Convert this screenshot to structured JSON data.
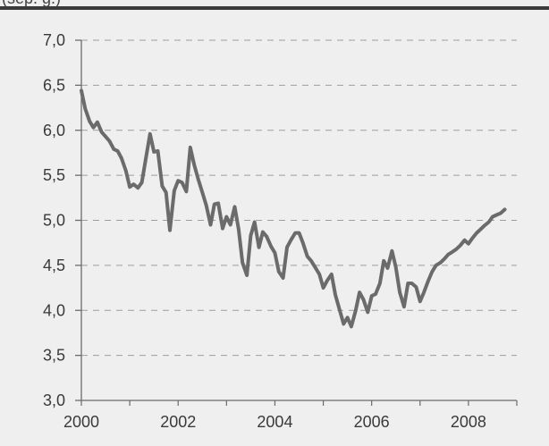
{
  "header": {
    "partial_subtitle": "(sep.         g.)"
  },
  "chart_data": {
    "type": "line",
    "title": "",
    "xlabel": "",
    "ylabel": "",
    "ylim": [
      3.0,
      7.0
    ],
    "xlim": [
      2000.0,
      2009.0
    ],
    "y_ticks": [
      "7,0",
      "6,5",
      "6,0",
      "5,5",
      "5,0",
      "4,5",
      "4,0",
      "3,5",
      "3,0"
    ],
    "x_ticks": [
      "2000",
      "2002",
      "2004",
      "2006",
      "2008"
    ],
    "grid": "horizontal dashed",
    "series": [
      {
        "values": [
          [
            2000.0,
            6.44
          ],
          [
            2000.08,
            6.24
          ],
          [
            2000.17,
            6.1
          ],
          [
            2000.25,
            6.03
          ],
          [
            2000.33,
            6.09
          ],
          [
            2000.42,
            5.98
          ],
          [
            2000.5,
            5.93
          ],
          [
            2000.58,
            5.88
          ],
          [
            2000.67,
            5.79
          ],
          [
            2000.75,
            5.77
          ],
          [
            2000.83,
            5.69
          ],
          [
            2000.92,
            5.55
          ],
          [
            2001.0,
            5.37
          ],
          [
            2001.08,
            5.4
          ],
          [
            2001.17,
            5.36
          ],
          [
            2001.25,
            5.42
          ],
          [
            2001.33,
            5.68
          ],
          [
            2001.42,
            5.96
          ],
          [
            2001.5,
            5.76
          ],
          [
            2001.58,
            5.77
          ],
          [
            2001.67,
            5.38
          ],
          [
            2001.75,
            5.31
          ],
          [
            2001.83,
            4.89
          ],
          [
            2001.92,
            5.33
          ],
          [
            2002.0,
            5.44
          ],
          [
            2002.08,
            5.42
          ],
          [
            2002.17,
            5.32
          ],
          [
            2002.25,
            5.81
          ],
          [
            2002.33,
            5.62
          ],
          [
            2002.42,
            5.45
          ],
          [
            2002.5,
            5.31
          ],
          [
            2002.58,
            5.17
          ],
          [
            2002.67,
            4.95
          ],
          [
            2002.75,
            5.18
          ],
          [
            2002.83,
            5.19
          ],
          [
            2002.92,
            4.91
          ],
          [
            2003.0,
            5.04
          ],
          [
            2003.08,
            4.95
          ],
          [
            2003.17,
            5.15
          ],
          [
            2003.25,
            4.9
          ],
          [
            2003.33,
            4.53
          ],
          [
            2003.42,
            4.39
          ],
          [
            2003.5,
            4.83
          ],
          [
            2003.58,
            4.98
          ],
          [
            2003.67,
            4.7
          ],
          [
            2003.75,
            4.87
          ],
          [
            2003.83,
            4.82
          ],
          [
            2003.92,
            4.71
          ],
          [
            2004.0,
            4.64
          ],
          [
            2004.08,
            4.43
          ],
          [
            2004.17,
            4.36
          ],
          [
            2004.25,
            4.7
          ],
          [
            2004.33,
            4.78
          ],
          [
            2004.42,
            4.86
          ],
          [
            2004.5,
            4.86
          ],
          [
            2004.58,
            4.75
          ],
          [
            2004.67,
            4.6
          ],
          [
            2004.75,
            4.55
          ],
          [
            2004.83,
            4.48
          ],
          [
            2004.92,
            4.4
          ],
          [
            2005.0,
            4.25
          ],
          [
            2005.08,
            4.33
          ],
          [
            2005.17,
            4.4
          ],
          [
            2005.25,
            4.17
          ],
          [
            2005.33,
            4.02
          ],
          [
            2005.42,
            3.85
          ],
          [
            2005.5,
            3.92
          ],
          [
            2005.58,
            3.82
          ],
          [
            2005.67,
            4.0
          ],
          [
            2005.75,
            4.2
          ],
          [
            2005.83,
            4.12
          ],
          [
            2005.92,
            3.98
          ],
          [
            2006.0,
            4.16
          ],
          [
            2006.08,
            4.18
          ],
          [
            2006.17,
            4.3
          ],
          [
            2006.25,
            4.55
          ],
          [
            2006.33,
            4.47
          ],
          [
            2006.42,
            4.66
          ],
          [
            2006.5,
            4.48
          ],
          [
            2006.58,
            4.2
          ],
          [
            2006.67,
            4.04
          ],
          [
            2006.75,
            4.3
          ],
          [
            2006.83,
            4.3
          ],
          [
            2006.92,
            4.26
          ],
          [
            2007.0,
            4.1
          ],
          [
            2007.08,
            4.2
          ],
          [
            2007.17,
            4.33
          ],
          [
            2007.25,
            4.43
          ],
          [
            2007.33,
            4.5
          ],
          [
            2007.42,
            4.53
          ],
          [
            2007.5,
            4.57
          ],
          [
            2007.58,
            4.62
          ],
          [
            2007.67,
            4.65
          ],
          [
            2007.75,
            4.68
          ],
          [
            2007.83,
            4.72
          ],
          [
            2007.92,
            4.78
          ],
          [
            2008.0,
            4.74
          ],
          [
            2008.08,
            4.8
          ],
          [
            2008.17,
            4.86
          ],
          [
            2008.25,
            4.9
          ],
          [
            2008.33,
            4.94
          ],
          [
            2008.42,
            4.98
          ],
          [
            2008.5,
            5.04
          ],
          [
            2008.58,
            5.06
          ],
          [
            2008.67,
            5.08
          ],
          [
            2008.75,
            5.12
          ]
        ]
      }
    ]
  },
  "colors": {
    "background": "#efefef",
    "line": "#6b6b6b",
    "grid": "#9e9e9e",
    "axis": "#6b6b6b",
    "tick_text": "#3a3a3a"
  }
}
